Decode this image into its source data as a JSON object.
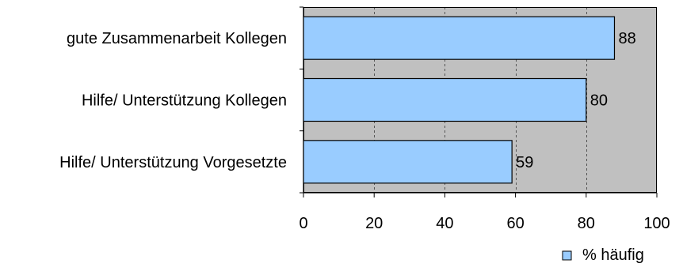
{
  "chart_data": {
    "type": "bar",
    "orientation": "horizontal",
    "categories": [
      "gute Zusammenarbeit Kollegen",
      "Hilfe/ Unterstützung Kollegen",
      "Hilfe/ Unterstützung Vorgesetzte"
    ],
    "series": [
      {
        "name": "% häufig",
        "values": [
          88,
          80,
          59
        ],
        "color": "#99ccff"
      }
    ],
    "data_labels": [
      "88",
      "80",
      "59"
    ],
    "xlim": [
      0,
      100
    ],
    "x_ticks": [
      0,
      20,
      40,
      60,
      80,
      100
    ],
    "x_tick_labels": [
      "0",
      "20",
      "40",
      "60",
      "80",
      "100"
    ],
    "plot_background": "#c0c0c0",
    "grid": "vertical dashed",
    "legend_position": "bottom-right",
    "title": "",
    "xlabel": "",
    "ylabel": ""
  }
}
